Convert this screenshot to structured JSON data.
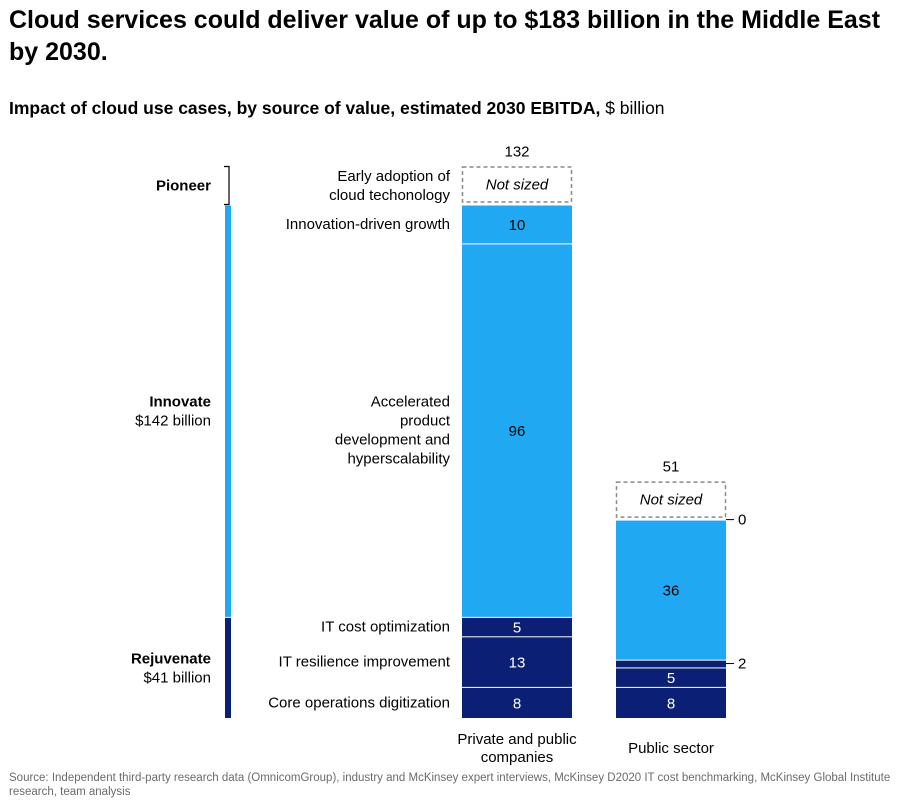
{
  "title": "Cloud services could deliver value of up to $183 billion in the Middle East by 2030.",
  "subtitle": {
    "bold": "Impact of cloud use cases, by source of value, estimated 2030 EBITDA,",
    "unit": " $ billion"
  },
  "source": "Source: Independent third-party research data (OmnicomGroup), industry and McKinsey expert interviews, McKinsey D2020 IT cost benchmarking, McKinsey Global Institute research, team analysis",
  "colors": {
    "innovate": "#20a8f2",
    "rejuvenate": "#0b1f75",
    "not_sized_border": "#8a8a8a"
  },
  "groups": [
    {
      "name": "Pioneer",
      "value_label": ""
    },
    {
      "name": "Innovate",
      "value_label": "$142 billion"
    },
    {
      "name": "Rejuvenate",
      "value_label": "$41 billion"
    }
  ],
  "not_sized_label": "Not sized",
  "chart_data": {
    "type": "bar",
    "stacked": true,
    "categories": [
      "Private and public companies",
      "Public sector"
    ],
    "totals": [
      132,
      51
    ],
    "segments": [
      {
        "name": "Early adoption of cloud techonology",
        "group": "Pioneer",
        "values": [
          null,
          null
        ],
        "labels": [
          "Not sized",
          ""
        ]
      },
      {
        "name": "Innovation-driven growth",
        "group": "Innovate",
        "values": [
          10,
          0
        ],
        "labels": [
          "10",
          "0"
        ]
      },
      {
        "name": "Accelerated product development and hyperscalability",
        "group": "Innovate",
        "values": [
          96,
          36
        ],
        "labels": [
          "96",
          "36"
        ]
      },
      {
        "name": "IT cost optimization",
        "group": "Rejuvenate",
        "values": [
          5,
          2
        ],
        "labels": [
          "5",
          "2"
        ]
      },
      {
        "name": "IT resilience improvement",
        "group": "Rejuvenate",
        "values": [
          13,
          5
        ],
        "labels": [
          "13",
          "5"
        ]
      },
      {
        "name": "Core operations digitization",
        "group": "Rejuvenate",
        "values": [
          8,
          8
        ],
        "labels": [
          "8",
          "8"
        ]
      }
    ],
    "public_sector_not_sized_label": "Not sized"
  }
}
